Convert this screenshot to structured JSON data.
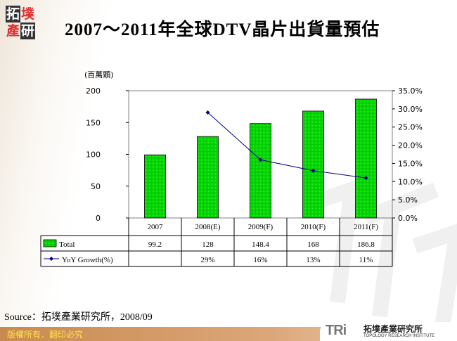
{
  "logo": {
    "chars": [
      "拓",
      "墣",
      "產",
      "研"
    ],
    "colors": {
      "dark": "#222222",
      "red": "#e03030"
    }
  },
  "title": "2007～2011年全球DTV晶片出貨量預估",
  "chart_data": {
    "type": "bar+line",
    "unit_label": "(百萬顆)",
    "categories": [
      "2007",
      "2008(E)",
      "2009(F)",
      "2010(F)",
      "2011(F)"
    ],
    "y_left": {
      "range": [
        0,
        200
      ],
      "ticks": [
        "0",
        "50",
        "100",
        "150",
        "200"
      ]
    },
    "y_right": {
      "range": [
        0,
        35
      ],
      "ticks": [
        "0.0%",
        "5.0%",
        "10.0%",
        "15.0%",
        "20.0%",
        "25.0%",
        "30.0%",
        "35.0%"
      ]
    },
    "series": [
      {
        "name": "Total",
        "type": "bar",
        "axis": "left",
        "color": "#00cc00",
        "values": [
          99.2,
          128,
          148.4,
          168,
          186.8
        ],
        "labels": [
          "99.2",
          "128",
          "148.4",
          "168",
          "186.8"
        ]
      },
      {
        "name": "YoY Growth(%)",
        "type": "line",
        "axis": "right",
        "color": "#00008b",
        "values": [
          null,
          29,
          16,
          13,
          11
        ],
        "labels": [
          "",
          "29%",
          "16%",
          "13%",
          "11%"
        ]
      }
    ],
    "grid": false,
    "legend": "data-table"
  },
  "source": "Source：拓墣產業研究所，2008/09",
  "footer": {
    "copyright": "版權所有．翻印必究",
    "brand_mark": "TRi",
    "brand_cn": "拓墣產業研究所",
    "brand_en": "TOPOLOGY RESEARCH INSTITUTE"
  }
}
